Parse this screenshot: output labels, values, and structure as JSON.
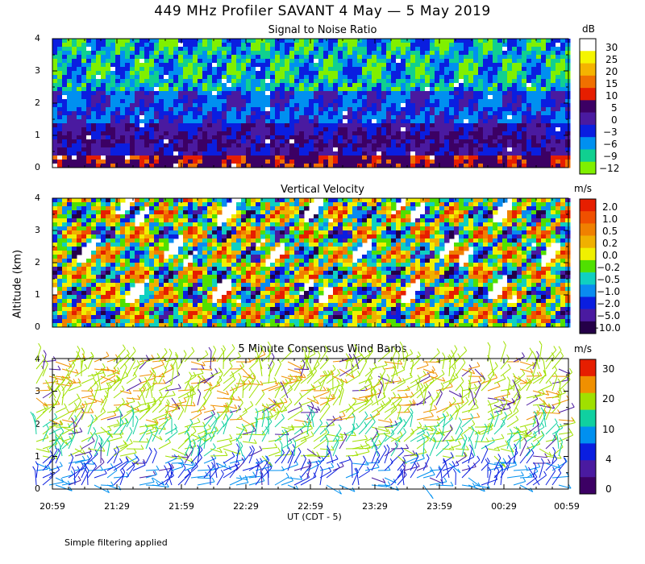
{
  "title": "449 MHz Profiler SAVANT  4 May —  5 May 2019",
  "footer_note": "Simple filtering applied",
  "colors": {
    "background": "#ffffff",
    "blank": "#ffffff"
  },
  "chart_data": [
    {
      "type": "heatmap",
      "name": "snr",
      "title": "Signal to Noise Ratio",
      "xlabel": "UT  (CDT - 5)",
      "ylabel": "Altitude (km)",
      "xlim_hours": [
        20.9833,
        24.9833
      ],
      "ylim_km": [
        0,
        4
      ],
      "yticks": [
        "0",
        "1",
        "2",
        "3",
        "4"
      ],
      "colorbar_unit": "dB",
      "colorbar_labels": [
        "30",
        "25",
        "20",
        "15",
        "10",
        "5",
        "0",
        "−3",
        "−6",
        "−9",
        "−12"
      ],
      "colorbar_colors": [
        "#ffffff",
        "#f5f500",
        "#f5b400",
        "#f07000",
        "#e61e00",
        "#3c0064",
        "#4a1aa0",
        "#0a1ee0",
        "#0090f0",
        "#10d090",
        "#80f000"
      ]
    },
    {
      "type": "heatmap",
      "name": "vertical-velocity",
      "title": "Vertical Velocity",
      "xlabel": "UT  (CDT - 5)",
      "ylabel": "Altitude (km)",
      "xlim_hours": [
        20.9833,
        24.9833
      ],
      "ylim_km": [
        0,
        4
      ],
      "yticks": [
        "0",
        "1",
        "2",
        "3",
        "4"
      ],
      "colorbar_unit": "m/s",
      "colorbar_labels": [
        "2.0",
        "1.0",
        "0.5",
        "0.2",
        "0.0",
        "−0.2",
        "−0.5",
        "−1.0",
        "−2.0",
        "−5.0",
        "−10.0"
      ],
      "colorbar_colors": [
        "#e61e00",
        "#f05000",
        "#f08000",
        "#f0b000",
        "#f0f000",
        "#50e000",
        "#10d0c0",
        "#0a8cf0",
        "#0a1ee0",
        "#4a1aa0",
        "#240048"
      ]
    },
    {
      "type": "scatter",
      "name": "wind-barbs",
      "title": "5 Minute Consensus Wind Barbs",
      "xlabel": "UT  (CDT - 5)",
      "ylabel": "Altitude (km)",
      "xlim_hours": [
        20.9833,
        24.9833
      ],
      "ylim_km": [
        0,
        4
      ],
      "yticks": [
        "0",
        "1",
        "2",
        "3",
        "4"
      ],
      "colorbar_unit": "m/s",
      "colorbar_labels": [
        "30",
        "20",
        "10",
        "4",
        "0"
      ],
      "colorbar_colors": [
        "#e61e00",
        "#f09000",
        "#a0e000",
        "#10d0a0",
        "#0090f0",
        "#0a1ee0",
        "#4a1aa0",
        "#3c0064"
      ]
    }
  ],
  "x_axis": {
    "label": "UT  (CDT - 5)",
    "ticks": [
      "20:59",
      "21:29",
      "21:59",
      "22:29",
      "22:59",
      "23:29",
      "23:59",
      "00:29",
      "00:59"
    ]
  },
  "y_axis": {
    "label": "Altitude (km)"
  }
}
